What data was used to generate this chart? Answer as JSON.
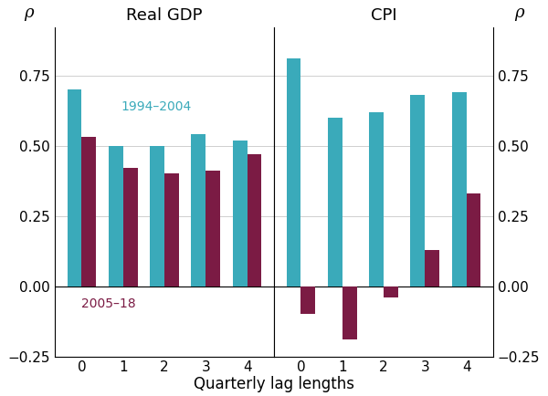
{
  "gdp_1994_2004": [
    0.7,
    0.5,
    0.5,
    0.54,
    0.52
  ],
  "gdp_2005_18": [
    0.53,
    0.42,
    0.4,
    0.41,
    0.47
  ],
  "cpi_1994_2004": [
    0.81,
    0.6,
    0.62,
    0.68,
    0.69
  ],
  "cpi_2005_18": [
    -0.1,
    -0.19,
    -0.04,
    0.13,
    0.33
  ],
  "lags": [
    0,
    1,
    2,
    3,
    4
  ],
  "color_teal": "#3AAABA",
  "color_maroon": "#7B1B44",
  "rho_label": "ρ",
  "xlabel": "Quarterly lag lengths",
  "title_left": "Real GDP",
  "title_right": "CPI",
  "legend_1994": "1994–2004",
  "legend_2005": "2005–18",
  "ylim": [
    -0.25,
    0.92
  ],
  "yticks": [
    -0.25,
    0.0,
    0.25,
    0.5,
    0.75
  ],
  "bar_width": 0.35,
  "figsize": [
    6.0,
    4.34
  ],
  "dpi": 100,
  "background_color": "#ffffff",
  "grid_color": "#c8c8c8"
}
